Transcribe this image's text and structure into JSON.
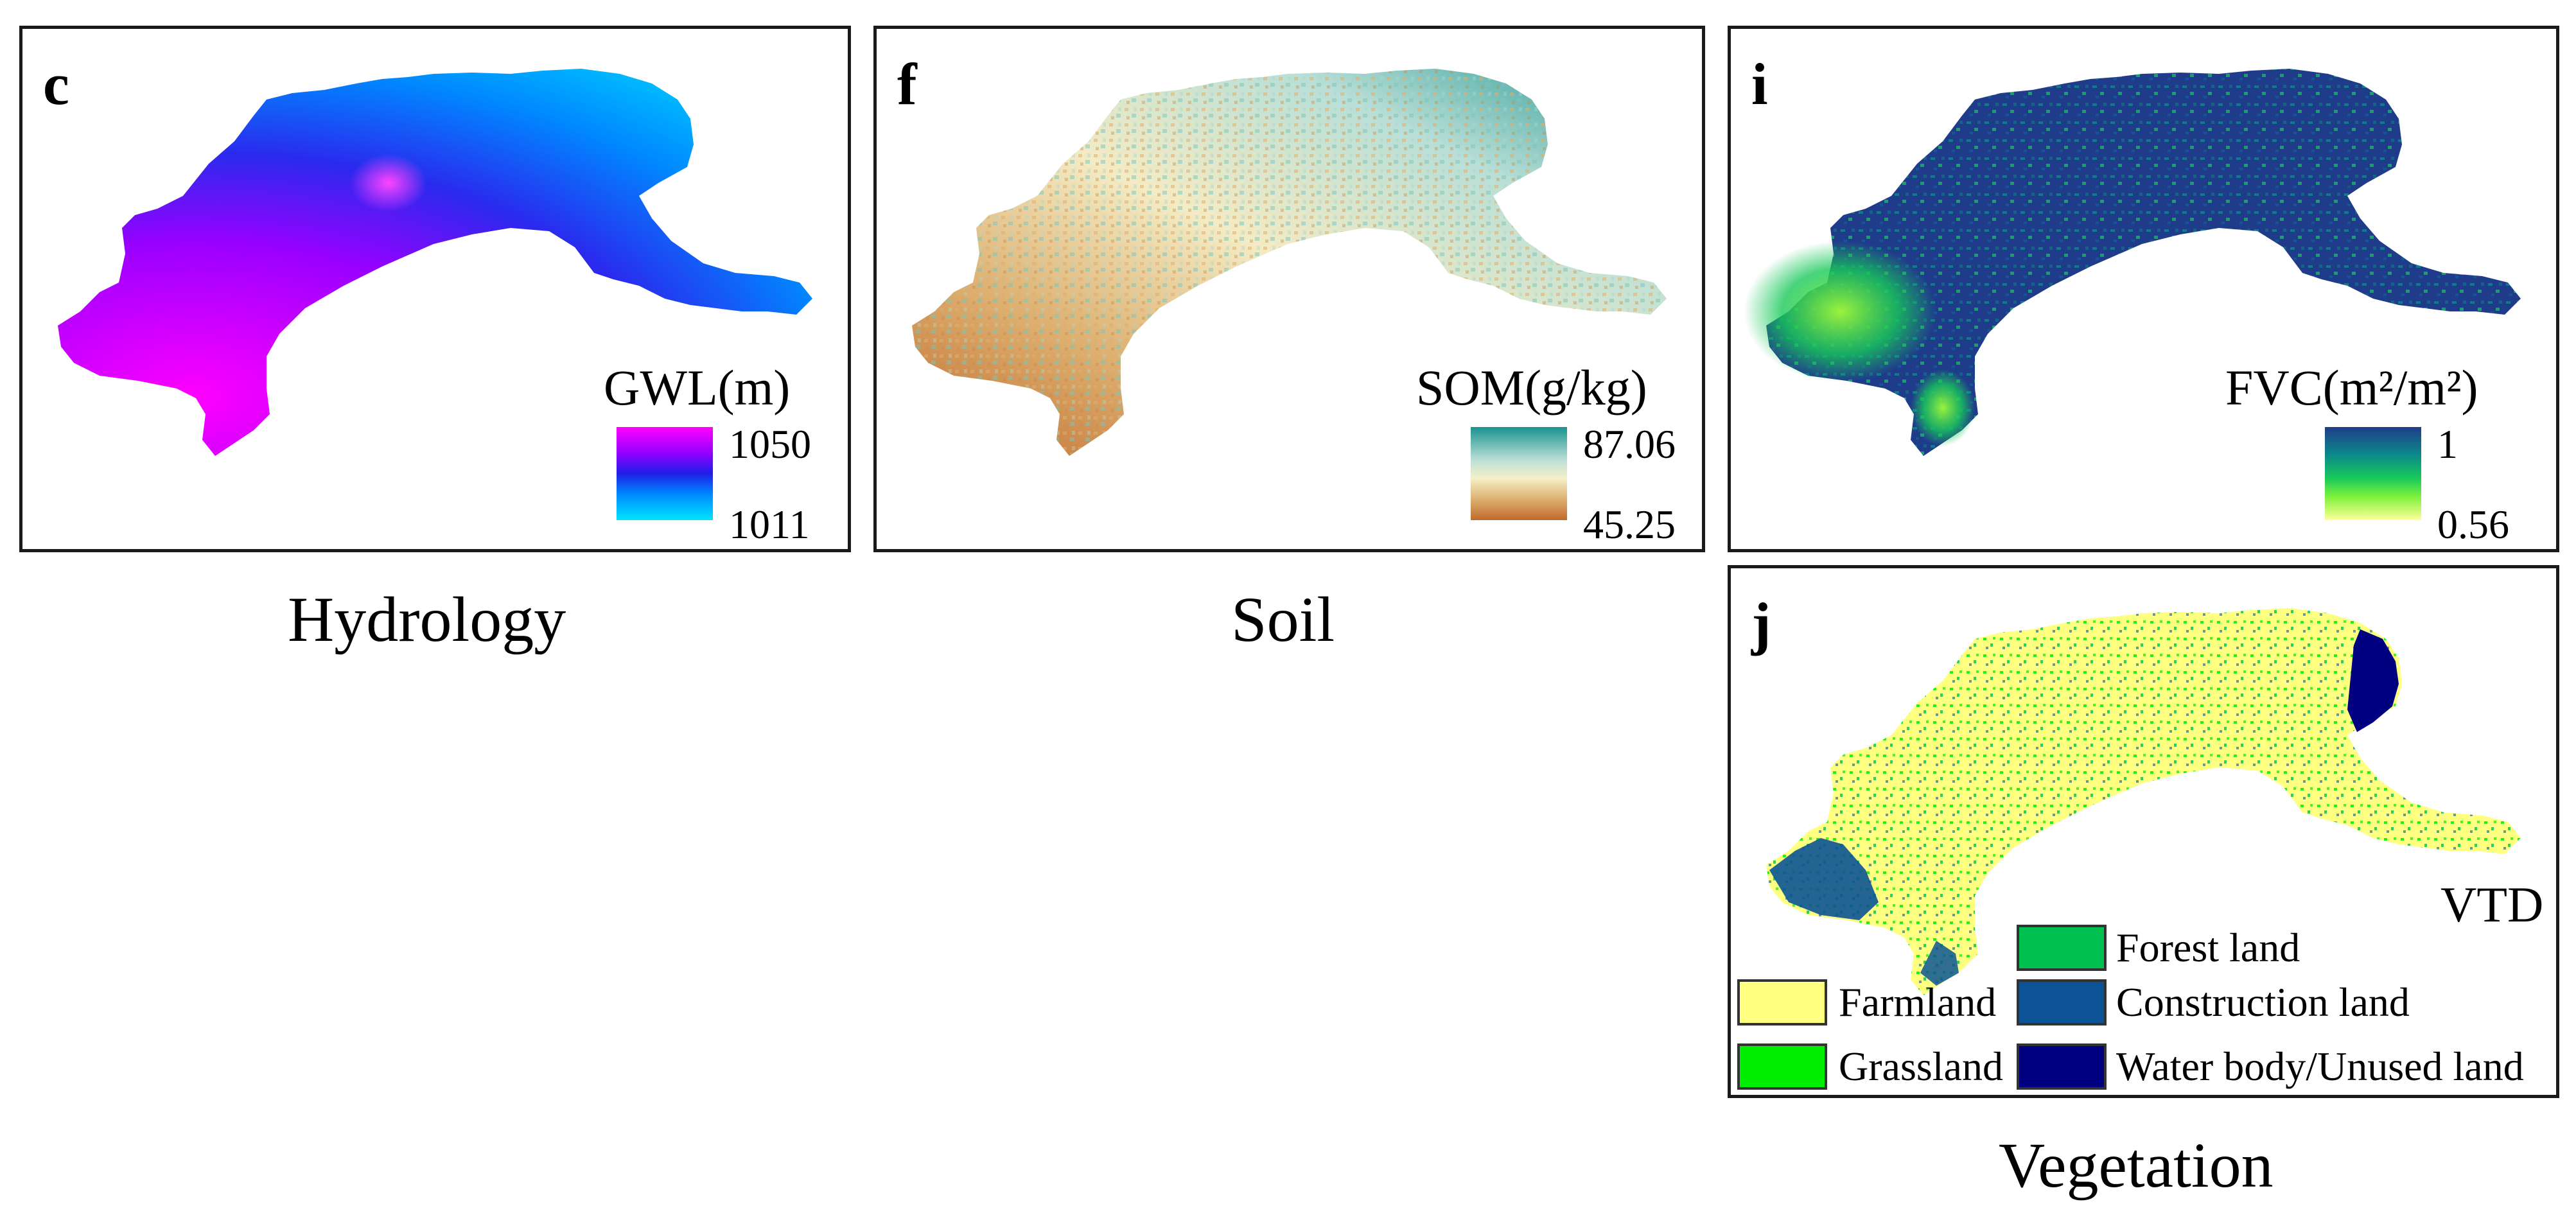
{
  "panels": {
    "c": {
      "letter": "c",
      "title": "GWL(m)",
      "max": "1050",
      "min": "1011",
      "colors": [
        "#ff00ff",
        "#8a00ff",
        "#1e1ee6",
        "#0088ff",
        "#00e5ff"
      ]
    },
    "f": {
      "letter": "f",
      "title": "SOM(g/kg)",
      "max": "87.06",
      "min": "45.25",
      "colors": [
        "#1a9290",
        "#b9dfd6",
        "#f5f0c9",
        "#dcae6e",
        "#c06a2c"
      ]
    },
    "i": {
      "letter": "i",
      "title": "FVC(m²/m²)",
      "max": "1",
      "min": "0.56",
      "colors": [
        "#1f3c8a",
        "#0b8a8a",
        "#18c95a",
        "#7ff23c",
        "#ffff99"
      ]
    },
    "j": {
      "letter": "j",
      "title": "VTD"
    }
  },
  "groups": {
    "hydrology": "Hydrology",
    "soil": "Soil",
    "vegetation": "Vegetation"
  },
  "vtd_legend": [
    {
      "label": "Farmland",
      "color": "#ffff80"
    },
    {
      "label": "Grassland",
      "color": "#00ee00"
    },
    {
      "label": "Forest land",
      "color": "#00c050"
    },
    {
      "label": "Construction land",
      "color": "#0b5394"
    },
    {
      "label": "Water body/Unused land",
      "color": "#000080"
    }
  ]
}
